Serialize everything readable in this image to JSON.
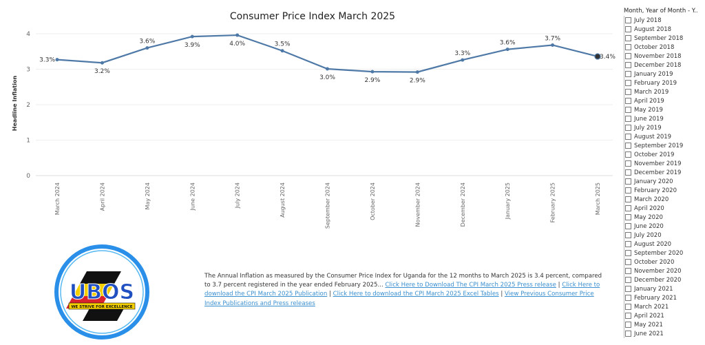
{
  "chart_data": {
    "type": "line",
    "title": "Consumer Price Index March 2025",
    "xlabel": "",
    "ylabel": "Headline Inflation",
    "ylim": [
      0,
      4
    ],
    "yticks": [
      "0",
      "1",
      "2",
      "3",
      "4"
    ],
    "grid": true,
    "categories": [
      "March 2024",
      "April 2024",
      "May 2024",
      "June 2024",
      "July 2024",
      "August 2024",
      "September 2024",
      "October 2024",
      "November 2024",
      "December 2024",
      "January 2025",
      "February 2025",
      "March 2025"
    ],
    "values": [
      3.27,
      3.18,
      3.6,
      3.92,
      3.96,
      3.52,
      3.01,
      2.93,
      2.92,
      3.26,
      3.56,
      3.68,
      3.36
    ],
    "data_labels": [
      "3.3%",
      "3.2%",
      "3.6%",
      "3.9%",
      "4.0%",
      "3.5%",
      "3.0%",
      "2.9%",
      "2.9%",
      "3.3%",
      "3.6%",
      "3.7%",
      "3.4%"
    ],
    "label_positions": [
      "left",
      "below",
      "above",
      "below",
      "below",
      "above",
      "below",
      "below",
      "below",
      "above",
      "above",
      "above",
      "right"
    ],
    "line_color": "#4e79a7"
  },
  "filter": {
    "title": "Month, Year of Month - Y..",
    "items": [
      "July 2018",
      "August 2018",
      "September 2018",
      "October 2018",
      "November 2018",
      "December 2018",
      "January 2019",
      "February 2019",
      "March 2019",
      "April 2019",
      "May 2019",
      "June 2019",
      "July 2019",
      "August 2019",
      "September 2019",
      "October 2019",
      "November 2019",
      "December 2019",
      "January 2020",
      "February 2020",
      "March 2020",
      "April 2020",
      "May 2020",
      "June 2020",
      "July 2020",
      "August 2020",
      "September 2020",
      "October 2020",
      "November 2020",
      "December 2020",
      "January 2021",
      "February 2021",
      "March 2021",
      "April 2021",
      "May 2021",
      "June 2021"
    ]
  },
  "logo": {
    "text": "UBOS",
    "motto": "WE STRIVE FOR EXCELLENCE",
    "ring_color": "#2a8fe8",
    "text_color": "#1f4fc0",
    "flag_colors": [
      "#111111",
      "#f4d000",
      "#d9232e"
    ]
  },
  "description": {
    "text": "The Annual Inflation as measured by the Consumer Price Index for Uganda for the 12 months to March 2025 is 3.4 percent, compared to 3.7 percent registered in the year ended February 2025...",
    "links": [
      "Click Here to Download The CPI March 2025 Press release",
      "Click Here to download the CPI March 2025 Publication",
      "Click Here to download the CPI March 2025 Excel Tables",
      "View Previous Consumer Price Index Publications and Press releases"
    ],
    "separator": " | ",
    "link_color": "#3a8fd0"
  }
}
